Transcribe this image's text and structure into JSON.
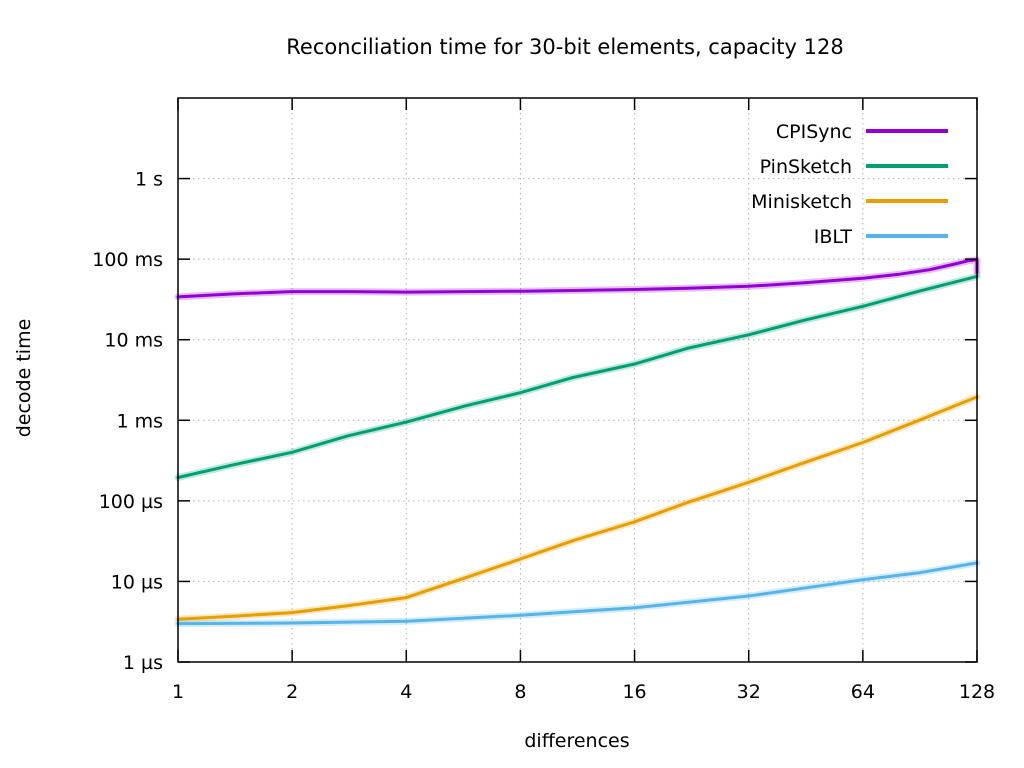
{
  "chart_data": {
    "type": "line",
    "title": "Reconciliation time for 30-bit elements, capacity 128",
    "xlabel": "differences",
    "ylabel": "decode time",
    "x_scale": "log2",
    "y_scale": "log10",
    "xlim": [
      1,
      128
    ],
    "ylim_microseconds": [
      1,
      10000000
    ],
    "grid": "dashed",
    "legend_position": "top-right",
    "x_ticks": [
      {
        "value": 1,
        "label": "1"
      },
      {
        "value": 2,
        "label": "2"
      },
      {
        "value": 4,
        "label": "4"
      },
      {
        "value": 8,
        "label": "8"
      },
      {
        "value": 16,
        "label": "16"
      },
      {
        "value": 32,
        "label": "32"
      },
      {
        "value": 64,
        "label": "64"
      },
      {
        "value": 128,
        "label": "128"
      }
    ],
    "y_ticks": [
      {
        "value": 1,
        "label": "1 µs"
      },
      {
        "value": 10,
        "label": "10 µs"
      },
      {
        "value": 100,
        "label": "100 µs"
      },
      {
        "value": 1000,
        "label": "1 ms"
      },
      {
        "value": 10000,
        "label": "10 ms"
      },
      {
        "value": 100000,
        "label": "100 ms"
      },
      {
        "value": 1000000,
        "label": "1 s"
      }
    ],
    "series": [
      {
        "name": "CPISync",
        "color": "#9400d3",
        "points_diff_vs_microseconds": [
          [
            1,
            34000
          ],
          [
            1.4,
            37000
          ],
          [
            2,
            39500
          ],
          [
            2.8,
            39500
          ],
          [
            4,
            39000
          ],
          [
            5.7,
            39500
          ],
          [
            8,
            40000
          ],
          [
            11,
            40800
          ],
          [
            16,
            42000
          ],
          [
            22,
            43500
          ],
          [
            32,
            46000
          ],
          [
            45,
            51000
          ],
          [
            64,
            58000
          ],
          [
            80,
            65000
          ],
          [
            96,
            74000
          ],
          [
            112,
            87000
          ],
          [
            122,
            96000
          ],
          [
            128,
            98000
          ],
          [
            128,
            68000
          ]
        ]
      },
      {
        "name": "PinSketch",
        "color": "#009e73",
        "points_diff_vs_microseconds": [
          [
            1,
            195
          ],
          [
            1.4,
            280
          ],
          [
            2,
            400
          ],
          [
            2.8,
            640
          ],
          [
            4,
            950
          ],
          [
            5.7,
            1500
          ],
          [
            8,
            2200
          ],
          [
            11,
            3400
          ],
          [
            16,
            5000
          ],
          [
            22,
            7800
          ],
          [
            32,
            11500
          ],
          [
            45,
            17500
          ],
          [
            64,
            26000
          ],
          [
            90,
            40000
          ],
          [
            128,
            61000
          ]
        ]
      },
      {
        "name": "Minisketch",
        "color": "#e69f00",
        "points_diff_vs_microseconds": [
          [
            1,
            3.4
          ],
          [
            1.4,
            3.7
          ],
          [
            2,
            4.1
          ],
          [
            2.8,
            5.0
          ],
          [
            4,
            6.3
          ],
          [
            5.7,
            11
          ],
          [
            8,
            19
          ],
          [
            11,
            32
          ],
          [
            16,
            55
          ],
          [
            22,
            95
          ],
          [
            32,
            170
          ],
          [
            45,
            300
          ],
          [
            64,
            530
          ],
          [
            90,
            1000
          ],
          [
            128,
            1950
          ]
        ]
      },
      {
        "name": "IBLT",
        "color": "#56b4e9",
        "points_diff_vs_microseconds": [
          [
            1,
            3.0
          ],
          [
            2,
            3.05
          ],
          [
            4,
            3.2
          ],
          [
            8,
            3.8
          ],
          [
            16,
            4.7
          ],
          [
            32,
            6.6
          ],
          [
            64,
            10.5
          ],
          [
            90,
            12.8
          ],
          [
            128,
            17
          ]
        ]
      }
    ],
    "colors": {
      "axis": "#000000",
      "grid": "#b0b0b0",
      "background": "#ffffff"
    }
  }
}
